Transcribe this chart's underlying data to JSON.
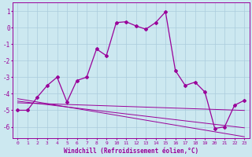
{
  "xlabel": "Windchill (Refroidissement éolien,°C)",
  "x": [
    0,
    1,
    2,
    3,
    4,
    5,
    6,
    7,
    8,
    9,
    10,
    11,
    12,
    13,
    14,
    15,
    16,
    17,
    18,
    19,
    20,
    21,
    22,
    23
  ],
  "main_line": [
    -5.0,
    -5.0,
    -4.2,
    -3.5,
    -3.0,
    -4.5,
    -3.2,
    -3.0,
    -1.3,
    -1.7,
    0.3,
    0.35,
    0.1,
    -0.1,
    0.3,
    0.95,
    -2.6,
    -3.5,
    -3.3,
    -3.9,
    -6.1,
    -6.0,
    -4.7,
    -4.4
  ],
  "linear1": [
    -4.55,
    -4.57,
    -4.59,
    -4.61,
    -4.63,
    -4.65,
    -4.67,
    -4.69,
    -4.71,
    -4.73,
    -4.75,
    -4.77,
    -4.79,
    -4.81,
    -4.83,
    -4.85,
    -4.87,
    -4.89,
    -4.91,
    -4.93,
    -4.95,
    -4.97,
    -4.99,
    -5.01
  ],
  "linear2": [
    -4.45,
    -4.52,
    -4.59,
    -4.66,
    -4.73,
    -4.8,
    -4.87,
    -4.94,
    -5.01,
    -5.08,
    -5.15,
    -5.22,
    -5.29,
    -5.36,
    -5.43,
    -5.5,
    -5.57,
    -5.64,
    -5.71,
    -5.78,
    -5.85,
    -5.92,
    -5.99,
    -6.06
  ],
  "linear3": [
    -4.3,
    -4.4,
    -4.5,
    -4.6,
    -4.7,
    -4.8,
    -4.9,
    -5.0,
    -5.1,
    -5.2,
    -5.3,
    -5.4,
    -5.5,
    -5.6,
    -5.7,
    -5.8,
    -5.9,
    -6.0,
    -6.1,
    -6.2,
    -6.3,
    -6.4,
    -6.5,
    -6.6
  ],
  "line_color": "#990099",
  "bg_color": "#cce8f0",
  "grid_color": "#aaccdd",
  "yticks": [
    1,
    0,
    -1,
    -2,
    -3,
    -4,
    -5,
    -6
  ],
  "xticks": [
    0,
    1,
    2,
    3,
    4,
    5,
    6,
    7,
    8,
    9,
    10,
    11,
    12,
    13,
    14,
    15,
    16,
    17,
    18,
    19,
    20,
    21,
    22,
    23
  ],
  "ylim_min": -6.7,
  "ylim_max": 1.5,
  "xlim_min": -0.5,
  "xlim_max": 23.5
}
